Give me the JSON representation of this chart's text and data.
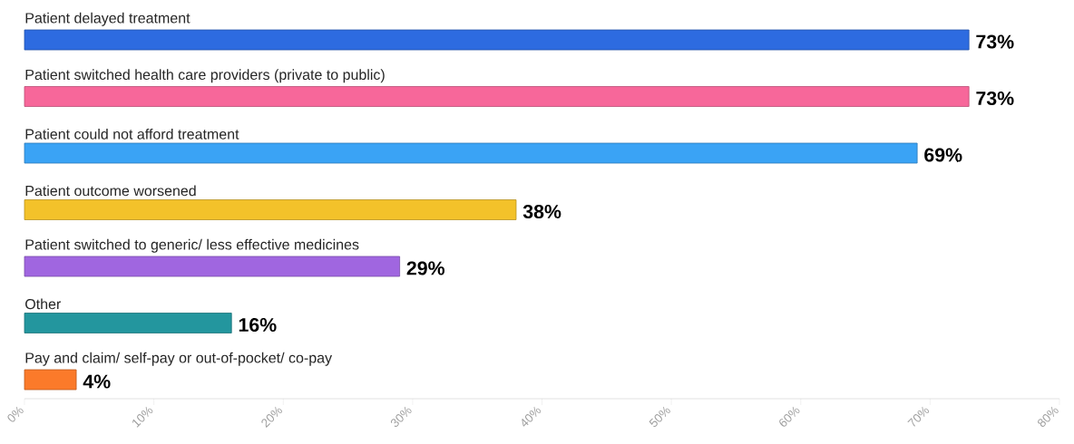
{
  "chart_data": {
    "type": "bar",
    "orientation": "horizontal",
    "categories": [
      "Patient delayed treatment",
      "Patient switched health care providers (private to public)",
      "Patient could not afford treatment",
      "Patient outcome worsened",
      "Patient switched to generic/ less effective medicines",
      "Other",
      "Pay and claim/ self-pay or out-of-pocket/ co-pay"
    ],
    "values": [
      73,
      73,
      69,
      38,
      29,
      16,
      4
    ],
    "colors": [
      "#2d6be0",
      "#f7679a",
      "#3aa3f5",
      "#f3c22a",
      "#a066e0",
      "#23969e",
      "#fb7a2a"
    ],
    "value_labels": [
      "73%",
      "73%",
      "69%",
      "38%",
      "29%",
      "16%",
      "4%"
    ],
    "xlim": [
      0,
      80
    ],
    "xticks": [
      {
        "value": 0,
        "label": "0%"
      },
      {
        "value": 10,
        "label": "10%"
      },
      {
        "value": 20,
        "label": "20%"
      },
      {
        "value": 30,
        "label": "30%"
      },
      {
        "value": 40,
        "label": "40%"
      },
      {
        "value": 50,
        "label": "50%"
      },
      {
        "value": 60,
        "label": "60%"
      },
      {
        "value": 70,
        "label": "70%"
      },
      {
        "value": 80,
        "label": "80%"
      }
    ]
  }
}
